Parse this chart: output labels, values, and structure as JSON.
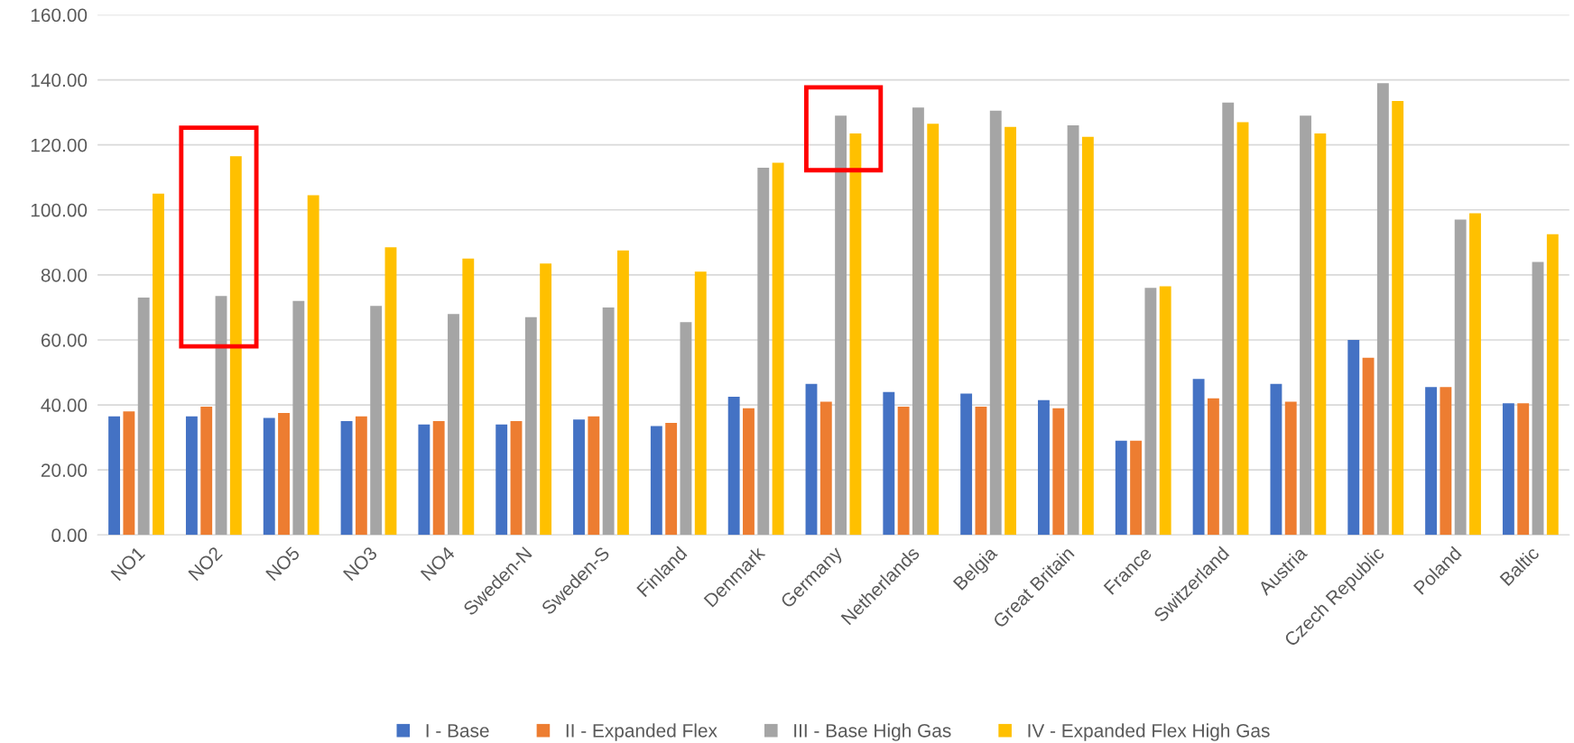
{
  "chart_data": {
    "type": "bar",
    "categories": [
      "NO1",
      "NO2",
      "NO5",
      "NO3",
      "NO4",
      "Sweden-N",
      "Sweden-S",
      "Finland",
      "Denmark",
      "Germany",
      "Netherlands",
      "Belgia",
      "Great Britain",
      "France",
      "Switzerland",
      "Austria",
      "Czech Republic",
      "Poland",
      "Baltic"
    ],
    "series": [
      {
        "name": "I - Base",
        "color": "#4472c4",
        "values": [
          36.5,
          36.5,
          36,
          35,
          34,
          34,
          35.5,
          33.5,
          42.5,
          46.5,
          44,
          43.5,
          41.5,
          29,
          48,
          46.5,
          60,
          45.5,
          40.5
        ]
      },
      {
        "name": "II - Expanded Flex",
        "color": "#ed7d31",
        "values": [
          38,
          39.5,
          37.5,
          36.5,
          35,
          35,
          36.5,
          34.5,
          39,
          41,
          39.5,
          39.5,
          39,
          29,
          42,
          41,
          54.5,
          45.5,
          40.5
        ]
      },
      {
        "name": "III - Base High Gas",
        "color": "#a5a5a5",
        "values": [
          73,
          73.5,
          72,
          70.5,
          68,
          67,
          70,
          65.5,
          113,
          129,
          131.5,
          130.5,
          126,
          76,
          133,
          129,
          139,
          97,
          84
        ]
      },
      {
        "name": "IV - Expanded Flex High Gas",
        "color": "#ffc000",
        "values": [
          105,
          116.5,
          104.5,
          88.5,
          85,
          83.5,
          87.5,
          81,
          114.5,
          123.5,
          126.5,
          125.5,
          122.5,
          76.5,
          127,
          123.5,
          133.5,
          99,
          92.5
        ]
      }
    ],
    "ylim": [
      0,
      160
    ],
    "yticks": [
      {
        "value": 0,
        "label": "0.00"
      },
      {
        "value": 20,
        "label": "20.00"
      },
      {
        "value": 40,
        "label": "40.00"
      },
      {
        "value": 60,
        "label": "60.00"
      },
      {
        "value": 80,
        "label": "80.00"
      },
      {
        "value": 100,
        "label": "100.00"
      },
      {
        "value": 120,
        "label": "120.00"
      },
      {
        "value": 140,
        "label": "140.00"
      },
      {
        "value": 160,
        "label": "160.00"
      }
    ],
    "grid": "y",
    "legend": "bottom"
  }
}
